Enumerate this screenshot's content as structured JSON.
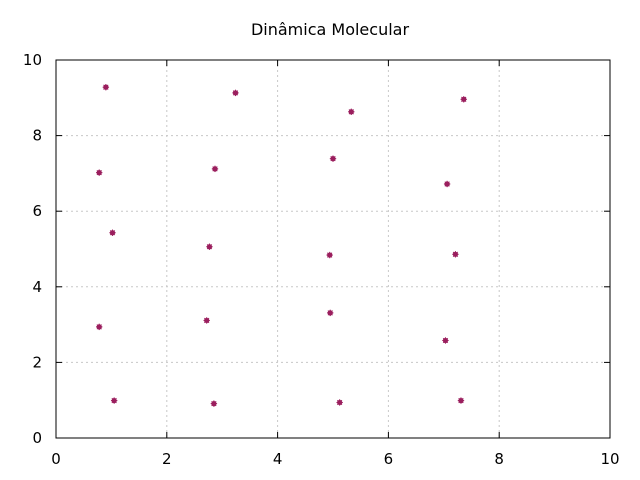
{
  "chart_data": {
    "type": "scatter",
    "title": "Dinâmica Molecular",
    "xlabel": "",
    "ylabel": "",
    "xlim": [
      0,
      10
    ],
    "ylim": [
      0,
      10
    ],
    "xticks": [
      "0",
      "2",
      "4",
      "6",
      "8",
      "10"
    ],
    "yticks": [
      "0",
      "2",
      "4",
      "6",
      "8",
      "10"
    ],
    "grid": true,
    "legend": "none",
    "marker_color": "#9b1f5e",
    "series": [
      {
        "points": [
          {
            "x": 0.9,
            "y": 9.28
          },
          {
            "x": 3.24,
            "y": 9.13
          },
          {
            "x": 5.33,
            "y": 8.63
          },
          {
            "x": 7.36,
            "y": 8.96
          },
          {
            "x": 0.78,
            "y": 7.02
          },
          {
            "x": 2.87,
            "y": 7.12
          },
          {
            "x": 5.0,
            "y": 7.39
          },
          {
            "x": 7.06,
            "y": 6.72
          },
          {
            "x": 1.02,
            "y": 5.43
          },
          {
            "x": 2.77,
            "y": 5.06
          },
          {
            "x": 4.94,
            "y": 4.84
          },
          {
            "x": 7.21,
            "y": 4.86
          },
          {
            "x": 0.78,
            "y": 2.94
          },
          {
            "x": 2.72,
            "y": 3.11
          },
          {
            "x": 4.95,
            "y": 3.31
          },
          {
            "x": 7.03,
            "y": 2.58
          },
          {
            "x": 1.05,
            "y": 0.99
          },
          {
            "x": 2.85,
            "y": 0.91
          },
          {
            "x": 5.12,
            "y": 0.94
          },
          {
            "x": 7.31,
            "y": 0.99
          }
        ]
      }
    ]
  }
}
